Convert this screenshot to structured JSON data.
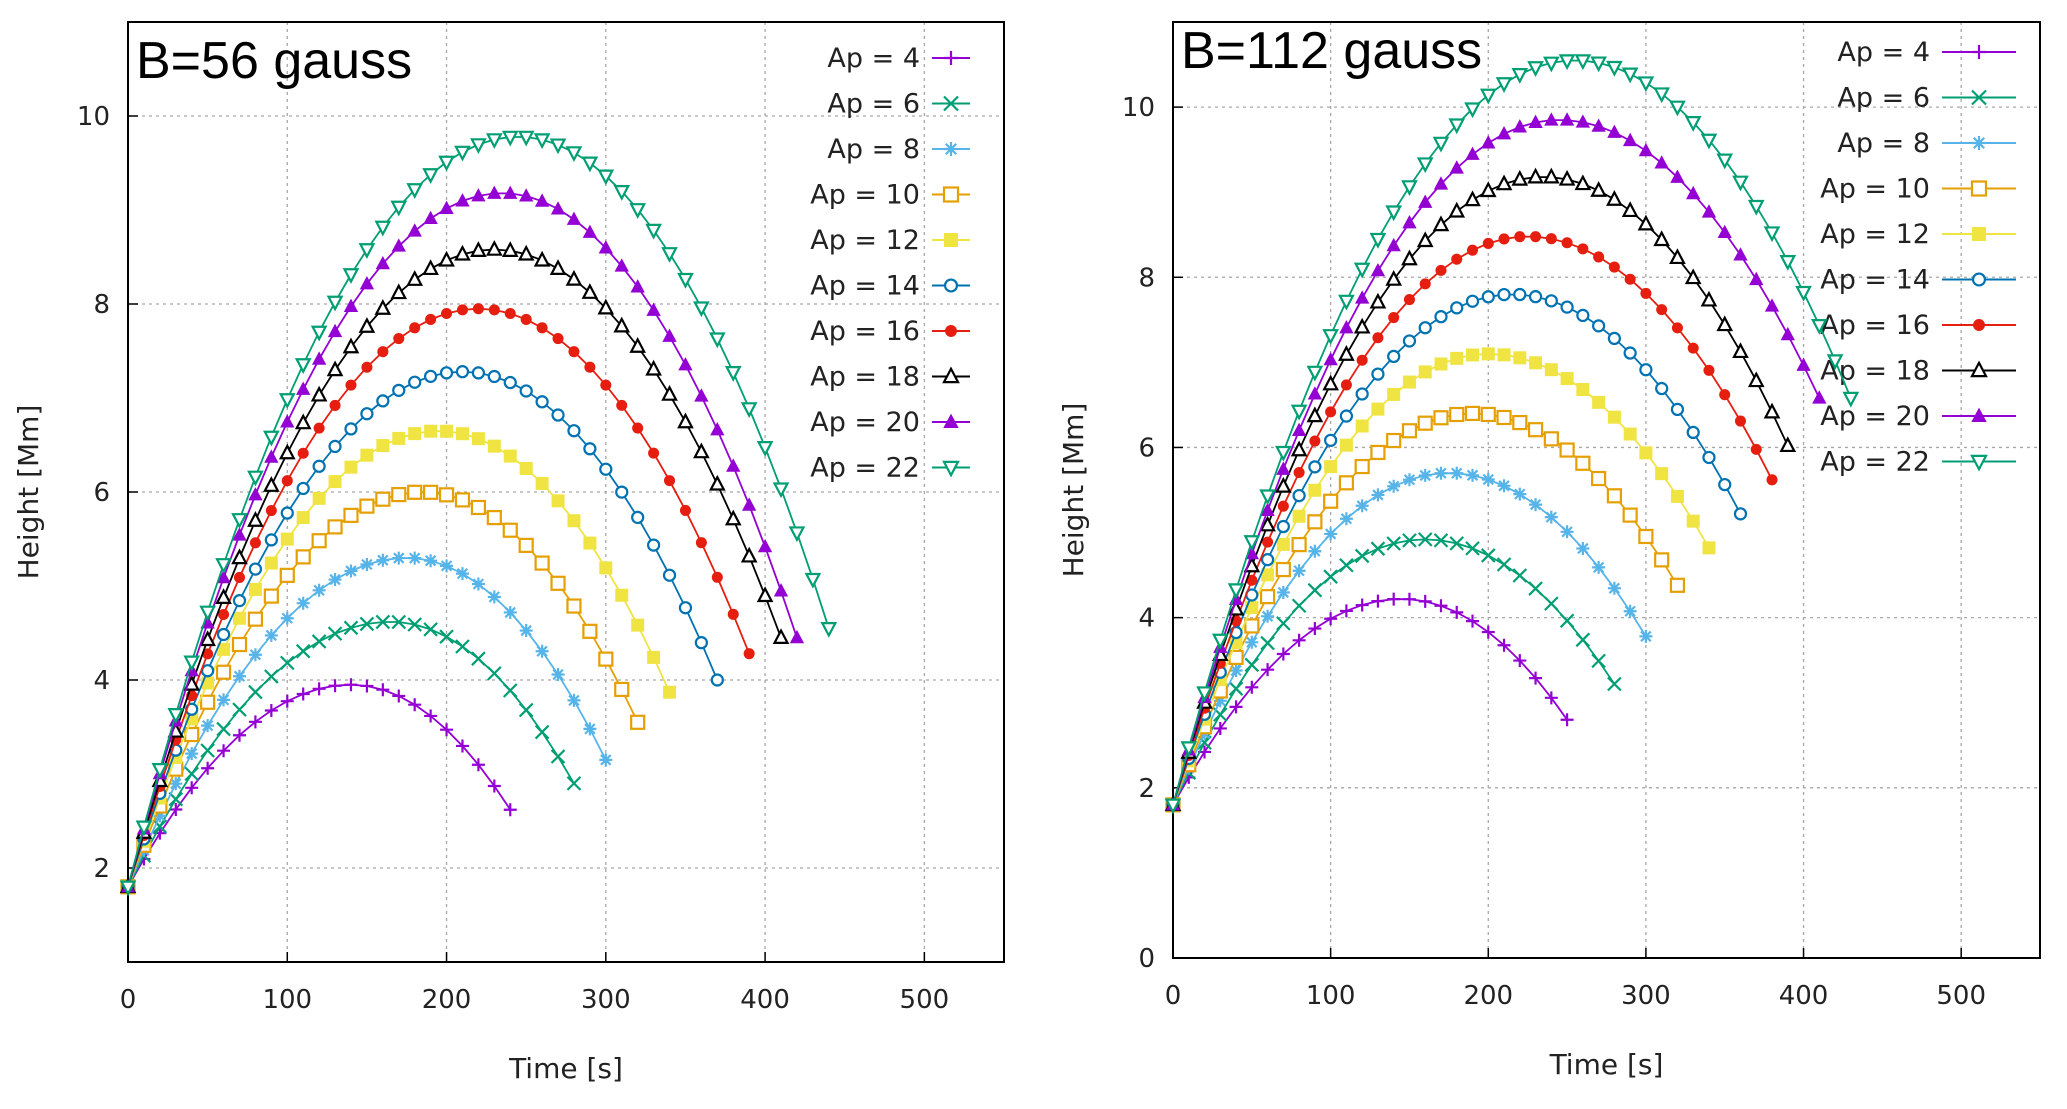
{
  "chart_data": [
    {
      "type": "line",
      "label": "B=56  gauss",
      "xlabel": "Time [s]",
      "ylabel": "Height [Mm]",
      "xlim": [
        0,
        550
      ],
      "ylim": [
        1,
        11
      ],
      "xticks": [
        0,
        100,
        200,
        300,
        400,
        500
      ],
      "yticks": [
        2,
        4,
        6,
        8,
        10
      ],
      "grid": true,
      "legend": "top-right",
      "series": [
        {
          "name": "Ap = 4",
          "color": "#9400d3",
          "marker": "plus",
          "t_end": 240,
          "peak_t": 140,
          "peak_h": 3.95,
          "end_h": 2.62
        },
        {
          "name": "Ap = 6",
          "color": "#009e73",
          "marker": "cross",
          "t_end": 280,
          "peak_t": 165,
          "peak_h": 4.62,
          "end_h": 2.9
        },
        {
          "name": "Ap = 8",
          "color": "#56b4e9",
          "marker": "star",
          "t_end": 300,
          "peak_t": 175,
          "peak_h": 5.3,
          "end_h": 3.15
        },
        {
          "name": "Ap = 10",
          "color": "#e69f00",
          "marker": "open-square",
          "t_end": 320,
          "peak_t": 185,
          "peak_h": 6.0,
          "end_h": 3.55
        },
        {
          "name": "Ap = 12",
          "color": "#f0e442",
          "marker": "filled-square",
          "t_end": 340,
          "peak_t": 195,
          "peak_h": 6.65,
          "end_h": 3.87
        },
        {
          "name": "Ap = 14",
          "color": "#0072b2",
          "marker": "open-circle",
          "t_end": 370,
          "peak_t": 210,
          "peak_h": 7.28,
          "end_h": 4.0
        },
        {
          "name": "Ap = 16",
          "color": "#e51e10",
          "marker": "filled-circle",
          "t_end": 390,
          "peak_t": 220,
          "peak_h": 7.95,
          "end_h": 4.28
        },
        {
          "name": "Ap = 18",
          "color": "#000000",
          "marker": "open-triangle",
          "t_end": 410,
          "peak_t": 230,
          "peak_h": 8.58,
          "end_h": 4.45
        },
        {
          "name": "Ap = 20",
          "color": "#9400d3",
          "marker": "filled-triangle",
          "t_end": 420,
          "peak_t": 235,
          "peak_h": 9.18,
          "end_h": 4.45
        },
        {
          "name": "Ap = 22",
          "color": "#009e73",
          "marker": "open-inv-triangle",
          "t_end": 440,
          "peak_t": 245,
          "peak_h": 9.78,
          "end_h": 4.55
        }
      ]
    },
    {
      "type": "line",
      "label": "B=112 gauss",
      "xlabel": "Time [s]",
      "ylabel": "Height [Mm]",
      "xlim": [
        0,
        550
      ],
      "ylim": [
        0,
        11
      ],
      "xticks": [
        0,
        100,
        200,
        300,
        400,
        500
      ],
      "yticks": [
        0,
        2,
        4,
        6,
        8,
        10
      ],
      "grid": true,
      "legend": "top-right",
      "series": [
        {
          "name": "Ap = 4",
          "color": "#9400d3",
          "marker": "plus",
          "t_end": 250,
          "peak_t": 145,
          "peak_h": 4.22,
          "end_h": 2.8
        },
        {
          "name": "Ap = 6",
          "color": "#009e73",
          "marker": "cross",
          "t_end": 280,
          "peak_t": 160,
          "peak_h": 4.92,
          "end_h": 3.22
        },
        {
          "name": "Ap = 8",
          "color": "#56b4e9",
          "marker": "star",
          "t_end": 300,
          "peak_t": 175,
          "peak_h": 5.7,
          "end_h": 3.78
        },
        {
          "name": "Ap = 10",
          "color": "#e69f00",
          "marker": "open-square",
          "t_end": 320,
          "peak_t": 190,
          "peak_h": 6.4,
          "end_h": 4.38
        },
        {
          "name": "Ap = 12",
          "color": "#f0e442",
          "marker": "filled-square",
          "t_end": 340,
          "peak_t": 200,
          "peak_h": 7.1,
          "end_h": 4.82
        },
        {
          "name": "Ap = 14",
          "color": "#0072b2",
          "marker": "open-circle",
          "t_end": 360,
          "peak_t": 215,
          "peak_h": 7.8,
          "end_h": 5.22
        },
        {
          "name": "Ap = 16",
          "color": "#e51e10",
          "marker": "filled-circle",
          "t_end": 380,
          "peak_t": 225,
          "peak_h": 8.48,
          "end_h": 5.62
        },
        {
          "name": "Ap = 18",
          "color": "#000000",
          "marker": "open-triangle",
          "t_end": 390,
          "peak_t": 235,
          "peak_h": 9.18,
          "end_h": 6.02
        },
        {
          "name": "Ap = 20",
          "color": "#9400d3",
          "marker": "filled-triangle",
          "t_end": 410,
          "peak_t": 245,
          "peak_h": 9.85,
          "end_h": 6.58
        },
        {
          "name": "Ap = 22",
          "color": "#009e73",
          "marker": "open-inv-triangle",
          "t_end": 430,
          "peak_t": 255,
          "peak_h": 10.55,
          "end_h": 6.58
        }
      ]
    }
  ]
}
